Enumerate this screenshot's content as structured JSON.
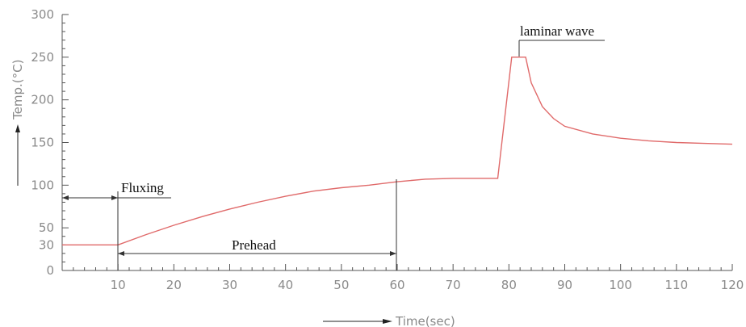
{
  "chart_data": {
    "type": "line",
    "title": "",
    "xlabel": "Time(sec)",
    "ylabel": "Temp.(°C)",
    "xlim": [
      0,
      120
    ],
    "ylim": [
      0,
      300
    ],
    "x_ticks": [
      "10",
      "20",
      "30",
      "40",
      "50",
      "60",
      "70",
      "80",
      "90",
      "100",
      "110",
      "120"
    ],
    "y_ticks": [
      "0",
      "30",
      "50",
      "100",
      "150",
      "200",
      "250",
      "300"
    ],
    "grid": false,
    "line_color": "#e06a6a",
    "series": [
      {
        "x": [
          0,
          10,
          15,
          20,
          25,
          30,
          35,
          40,
          45,
          50,
          55,
          60,
          65,
          70,
          75,
          78,
          80.5,
          81,
          83,
          84,
          86,
          88,
          90,
          95,
          100,
          105,
          110,
          115,
          120
        ],
        "y": [
          30,
          30,
          42,
          53,
          63,
          72,
          80,
          87,
          93,
          97,
          100,
          104,
          107,
          108,
          108,
          108,
          250,
          250,
          250,
          220,
          192,
          178,
          169,
          160,
          155,
          152,
          150,
          149,
          148
        ]
      }
    ],
    "annotations": {
      "fluxing": "Fluxing",
      "prehead": "Prehead",
      "laminar": "laminar wave"
    }
  }
}
